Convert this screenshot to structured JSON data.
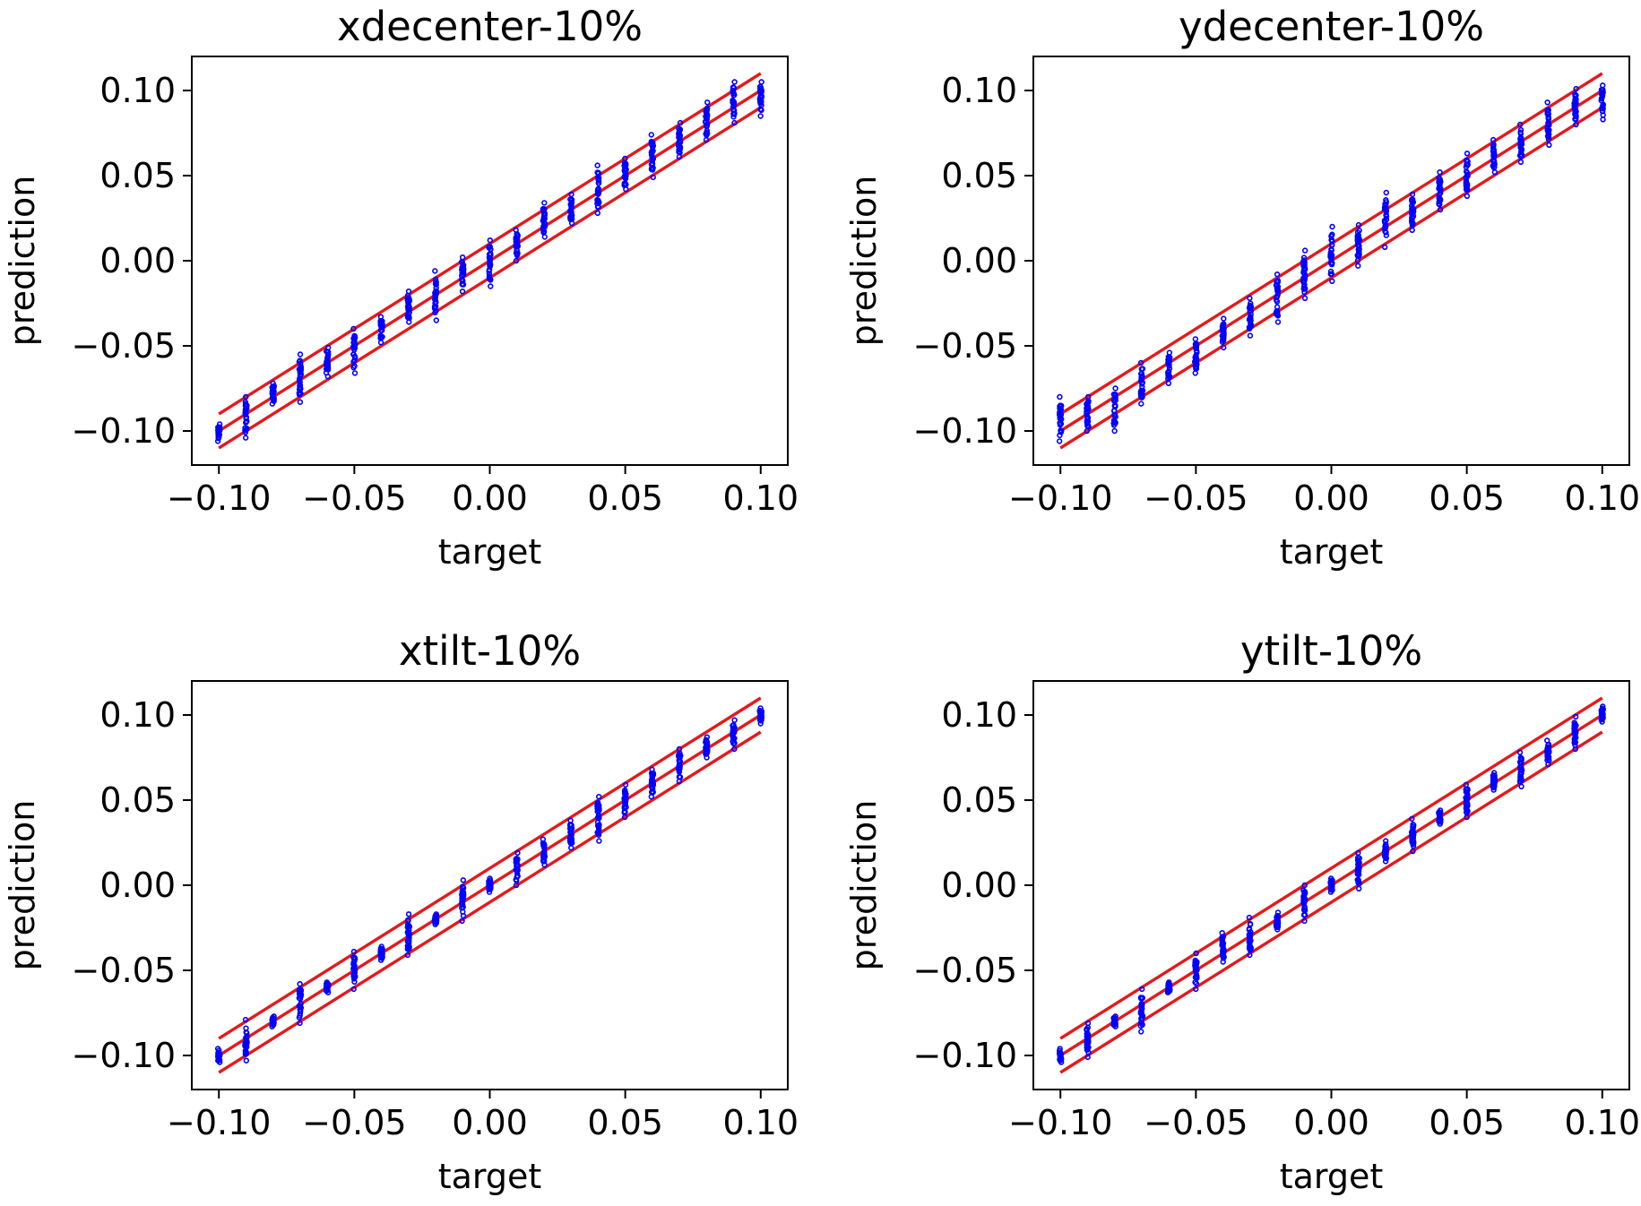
{
  "chart_data": [
    {
      "type": "scatter",
      "title": "xdecenter-10%",
      "xlabel": "target",
      "ylabel": "prediction",
      "xlim": [
        -0.11,
        0.11
      ],
      "ylim": [
        -0.12,
        0.12
      ],
      "xticks": [
        "−0.10",
        "−0.05",
        "0.00",
        "0.05",
        "0.10"
      ],
      "yticks": [
        "−0.10",
        "−0.05",
        "0.00",
        "0.05",
        "0.10"
      ],
      "grid": false,
      "reference_lines": [
        {
          "label": "y = x + 0.01",
          "x": [
            -0.1,
            0.1
          ],
          "y": [
            -0.09,
            0.11
          ]
        },
        {
          "label": "y = x",
          "x": [
            -0.1,
            0.1
          ],
          "y": [
            -0.1,
            0.1
          ]
        },
        {
          "label": "y = x - 0.01",
          "x": [
            -0.1,
            0.1
          ],
          "y": [
            -0.11,
            0.09
          ]
        }
      ],
      "series": [
        {
          "x": [
            -0.1,
            -0.09,
            -0.08,
            -0.07,
            -0.06,
            -0.05,
            -0.04,
            -0.03,
            -0.02,
            -0.01,
            0.0,
            0.01,
            0.02,
            0.03,
            0.04,
            0.05,
            0.06,
            0.07,
            0.08,
            0.09,
            0.1
          ],
          "y_min": [
            -0.106,
            -0.104,
            -0.084,
            -0.083,
            -0.068,
            -0.066,
            -0.048,
            -0.036,
            -0.035,
            -0.018,
            -0.015,
            0.0,
            0.014,
            0.022,
            0.028,
            0.042,
            0.049,
            0.061,
            0.071,
            0.081,
            0.085
          ],
          "y_max": [
            -0.096,
            -0.08,
            -0.072,
            -0.055,
            -0.051,
            -0.04,
            -0.033,
            -0.018,
            -0.006,
            0.002,
            0.012,
            0.018,
            0.034,
            0.039,
            0.056,
            0.06,
            0.074,
            0.081,
            0.093,
            0.105,
            0.105
          ]
        }
      ]
    },
    {
      "type": "scatter",
      "title": "ydecenter-10%",
      "xlabel": "target",
      "ylabel": "prediction",
      "xlim": [
        -0.11,
        0.11
      ],
      "ylim": [
        -0.12,
        0.12
      ],
      "xticks": [
        "−0.10",
        "−0.05",
        "0.00",
        "0.05",
        "0.10"
      ],
      "yticks": [
        "−0.10",
        "−0.05",
        "0.00",
        "0.05",
        "0.10"
      ],
      "grid": false,
      "reference_lines": [
        {
          "label": "y = x + 0.01",
          "x": [
            -0.1,
            0.1
          ],
          "y": [
            -0.09,
            0.11
          ]
        },
        {
          "label": "y = x",
          "x": [
            -0.1,
            0.1
          ],
          "y": [
            -0.1,
            0.1
          ]
        },
        {
          "label": "y = x - 0.01",
          "x": [
            -0.1,
            0.1
          ],
          "y": [
            -0.11,
            0.09
          ]
        }
      ],
      "series": [
        {
          "x": [
            -0.1,
            -0.09,
            -0.08,
            -0.07,
            -0.06,
            -0.05,
            -0.04,
            -0.03,
            -0.02,
            -0.01,
            0.0,
            0.01,
            0.02,
            0.03,
            0.04,
            0.05,
            0.06,
            0.07,
            0.08,
            0.09,
            0.1
          ],
          "y_min": [
            -0.106,
            -0.1,
            -0.1,
            -0.084,
            -0.072,
            -0.066,
            -0.051,
            -0.044,
            -0.036,
            -0.022,
            -0.012,
            -0.003,
            0.008,
            0.018,
            0.03,
            0.038,
            0.052,
            0.058,
            0.068,
            0.08,
            0.083
          ],
          "y_max": [
            -0.08,
            -0.08,
            -0.075,
            -0.06,
            -0.054,
            -0.046,
            -0.034,
            -0.022,
            -0.008,
            0.006,
            0.02,
            0.021,
            0.04,
            0.039,
            0.052,
            0.063,
            0.071,
            0.08,
            0.093,
            0.101,
            0.103
          ]
        }
      ]
    },
    {
      "type": "scatter",
      "title": "xtilt-10%",
      "xlabel": "target",
      "ylabel": "prediction",
      "xlim": [
        -0.11,
        0.11
      ],
      "ylim": [
        -0.12,
        0.12
      ],
      "xticks": [
        "−0.10",
        "−0.05",
        "0.00",
        "0.05",
        "0.10"
      ],
      "yticks": [
        "−0.10",
        "−0.05",
        "0.00",
        "0.05",
        "0.10"
      ],
      "grid": false,
      "reference_lines": [
        {
          "label": "y = x + 0.01",
          "x": [
            -0.1,
            0.1
          ],
          "y": [
            -0.09,
            0.11
          ]
        },
        {
          "label": "y = x",
          "x": [
            -0.1,
            0.1
          ],
          "y": [
            -0.1,
            0.1
          ]
        },
        {
          "label": "y = x - 0.01",
          "x": [
            -0.1,
            0.1
          ],
          "y": [
            -0.11,
            0.09
          ]
        }
      ],
      "series": [
        {
          "x": [
            -0.1,
            -0.09,
            -0.08,
            -0.07,
            -0.06,
            -0.05,
            -0.04,
            -0.03,
            -0.02,
            -0.01,
            0.0,
            0.01,
            0.02,
            0.03,
            0.04,
            0.05,
            0.06,
            0.07,
            0.08,
            0.09,
            0.1
          ],
          "y_min": [
            -0.104,
            -0.103,
            -0.083,
            -0.081,
            -0.063,
            -0.061,
            -0.044,
            -0.041,
            -0.023,
            -0.021,
            -0.004,
            0.0,
            0.012,
            0.022,
            0.026,
            0.04,
            0.052,
            0.061,
            0.075,
            0.08,
            0.095
          ],
          "y_max": [
            -0.096,
            -0.079,
            -0.077,
            -0.058,
            -0.057,
            -0.039,
            -0.036,
            -0.017,
            -0.017,
            0.003,
            0.004,
            0.019,
            0.027,
            0.038,
            0.052,
            0.059,
            0.068,
            0.08,
            0.087,
            0.097,
            0.104
          ]
        }
      ]
    },
    {
      "type": "scatter",
      "title": "ytilt-10%",
      "xlabel": "target",
      "ylabel": "prediction",
      "xlim": [
        -0.11,
        0.11
      ],
      "ylim": [
        -0.12,
        0.12
      ],
      "xticks": [
        "−0.10",
        "−0.05",
        "0.00",
        "0.05",
        "0.10"
      ],
      "yticks": [
        "−0.10",
        "−0.05",
        "0.00",
        "0.05",
        "0.10"
      ],
      "grid": false,
      "reference_lines": [
        {
          "label": "y = x + 0.01",
          "x": [
            -0.1,
            0.1
          ],
          "y": [
            -0.09,
            0.11
          ]
        },
        {
          "label": "y = x",
          "x": [
            -0.1,
            0.1
          ],
          "y": [
            -0.1,
            0.1
          ]
        },
        {
          "label": "y = x - 0.01",
          "x": [
            -0.1,
            0.1
          ],
          "y": [
            -0.11,
            0.09
          ]
        }
      ],
      "series": [
        {
          "x": [
            -0.1,
            -0.09,
            -0.08,
            -0.07,
            -0.06,
            -0.05,
            -0.04,
            -0.03,
            -0.02,
            -0.01,
            0.0,
            0.01,
            0.02,
            0.03,
            0.04,
            0.05,
            0.06,
            0.07,
            0.08,
            0.09,
            0.1
          ],
          "y_min": [
            -0.104,
            -0.101,
            -0.083,
            -0.086,
            -0.063,
            -0.061,
            -0.045,
            -0.041,
            -0.026,
            -0.021,
            -0.004,
            -0.002,
            0.014,
            0.02,
            0.036,
            0.04,
            0.056,
            0.058,
            0.071,
            0.08,
            0.096
          ],
          "y_max": [
            -0.096,
            -0.081,
            -0.077,
            -0.061,
            -0.057,
            -0.04,
            -0.028,
            -0.019,
            -0.016,
            0.0,
            0.004,
            0.019,
            0.026,
            0.039,
            0.044,
            0.059,
            0.066,
            0.078,
            0.085,
            0.099,
            0.105
          ]
        }
      ]
    }
  ],
  "colors": {
    "reference_line": "#e31a1c",
    "points": "#0000ff",
    "axes": "#000000",
    "background": "#ffffff"
  }
}
